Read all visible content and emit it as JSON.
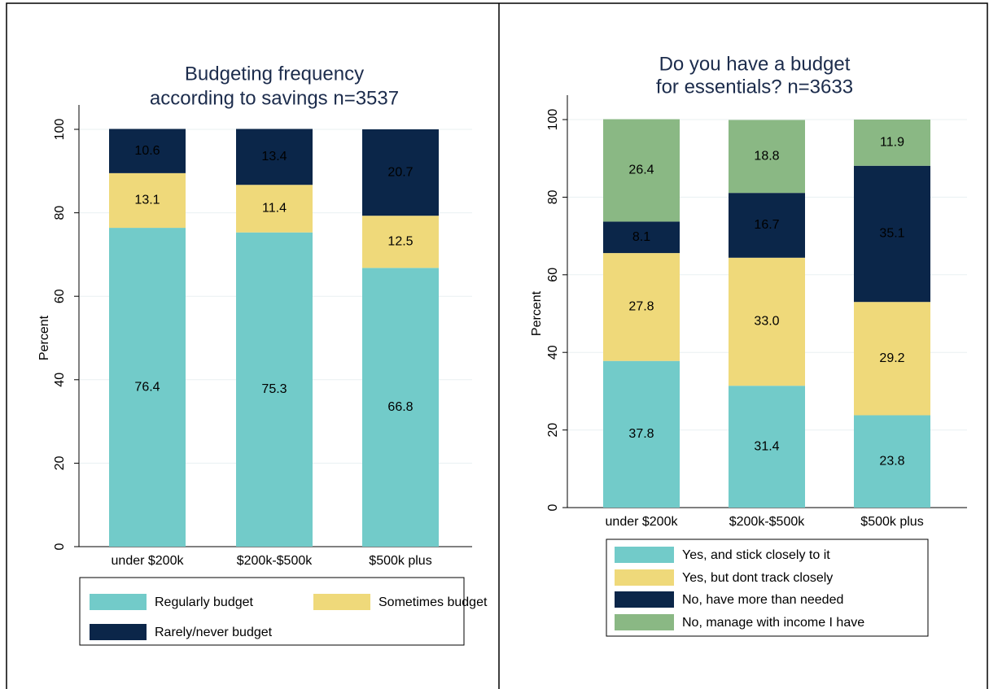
{
  "chart_data": [
    {
      "type": "stacked_bar",
      "title": [
        "Budgeting frequency",
        "according to savings n=3537"
      ],
      "ylabel": "Percent",
      "categories": [
        "under $200k",
        "$200k-$500k",
        "$500k plus"
      ],
      "series": [
        {
          "name": "Regularly budget",
          "color": "#72cbc9",
          "values": [
            76.4,
            75.3,
            66.8
          ],
          "value_labels": [
            "76.4",
            "75.3",
            "66.8"
          ]
        },
        {
          "name": "Sometimes budget",
          "color": "#efd97a",
          "values": [
            13.1,
            11.4,
            12.5
          ],
          "value_labels": [
            "13.1",
            "11.4",
            "12.5"
          ]
        },
        {
          "name": "Rarely/never budget",
          "color": "#0b2649",
          "values": [
            10.6,
            13.4,
            20.7
          ],
          "value_labels": [
            "10.6",
            "13.4",
            "20.7"
          ]
        }
      ],
      "ylim": [
        0,
        100
      ],
      "yticks": [
        0,
        20,
        40,
        60,
        80,
        100
      ],
      "grid": true
    },
    {
      "type": "stacked_bar",
      "title": [
        "Do you have a budget",
        "for essentials? n=3633"
      ],
      "ylabel": "Percent",
      "categories": [
        "under $200k",
        "$200k-$500k",
        "$500k plus"
      ],
      "series": [
        {
          "name": "Yes, and stick closely to it",
          "color": "#72cbc9",
          "values": [
            37.8,
            31.4,
            23.8
          ],
          "value_labels": [
            "37.8",
            "31.4",
            "23.8"
          ]
        },
        {
          "name": "Yes, but dont track closely",
          "color": "#efd97a",
          "values": [
            27.8,
            33.0,
            29.2
          ],
          "value_labels": [
            "27.8",
            "33.0",
            "29.2"
          ]
        },
        {
          "name": "No, have more than needed",
          "color": "#0b2649",
          "values": [
            8.1,
            16.7,
            35.1
          ],
          "value_labels": [
            "8.1",
            "16.7",
            "35.1"
          ]
        },
        {
          "name": "No, manage with income I have",
          "color": "#8ab884",
          "values": [
            26.4,
            18.8,
            11.9
          ],
          "value_labels": [
            "26.4",
            "18.8",
            "11.9"
          ]
        }
      ],
      "ylim": [
        0,
        100
      ],
      "yticks": [
        0,
        20,
        40,
        60,
        80,
        100
      ],
      "grid": true
    }
  ]
}
